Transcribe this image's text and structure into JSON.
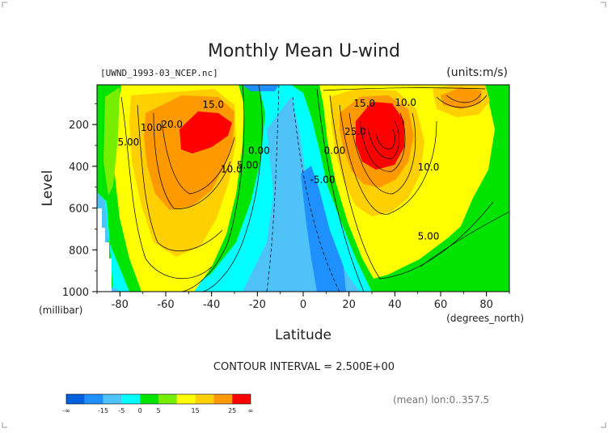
{
  "chart_data": {
    "type": "heatmap",
    "title": "Monthly Mean U-wind",
    "subtitle_left": "[UWND_1993-03_NCEP.nc]",
    "subtitle_right": "(units:m/s)",
    "xlabel": "Latitude",
    "x_unit": "(degrees_north)",
    "ylabel": "Level",
    "y_unit": "(millibar)",
    "x_ticks": [
      "-80",
      "-60",
      "-40",
      "-20",
      "0",
      "20",
      "40",
      "60",
      "80"
    ],
    "y_ticks": [
      "200",
      "400",
      "600",
      "800",
      "1000"
    ],
    "xlim": [
      -90,
      90
    ],
    "ylim": [
      1000,
      10
    ],
    "contour_labels": [
      {
        "text": "15.0",
        "x": -44,
        "y": 120
      },
      {
        "text": "20.0",
        "x": -62,
        "y": 215
      },
      {
        "text": "10.0",
        "x": -71,
        "y": 230
      },
      {
        "text": "5.00",
        "x": -81,
        "y": 300
      },
      {
        "text": "10.0",
        "x": -36,
        "y": 430
      },
      {
        "text": "5.00",
        "x": -29,
        "y": 410
      },
      {
        "text": "0.00",
        "x": -24,
        "y": 340
      },
      {
        "text": "0.00",
        "x": 9,
        "y": 340
      },
      {
        "text": "-5.00",
        "x": 3,
        "y": 480
      },
      {
        "text": "15.0",
        "x": 22,
        "y": 115
      },
      {
        "text": "10.0",
        "x": 40,
        "y": 110
      },
      {
        "text": "25.0",
        "x": 18,
        "y": 250
      },
      {
        "text": "10.0",
        "x": 50,
        "y": 420
      },
      {
        "text": "5.00",
        "x": 50,
        "y": 750
      }
    ],
    "contour_interval_text": "CONTOUR INTERVAL = 2.500E+00",
    "colorbar": {
      "labels": [
        "-∞",
        "-15",
        "-5",
        "0",
        "5",
        "15",
        "25",
        "∞"
      ],
      "colors": [
        "#0060e0",
        "#1e90ff",
        "#4fc3f7",
        "#00ffff",
        "#00e400",
        "#76ee00",
        "#ffff00",
        "#ffd000",
        "#ff9900",
        "#ff0000"
      ]
    },
    "footer_text": "(mean) lon:0..357.5"
  }
}
